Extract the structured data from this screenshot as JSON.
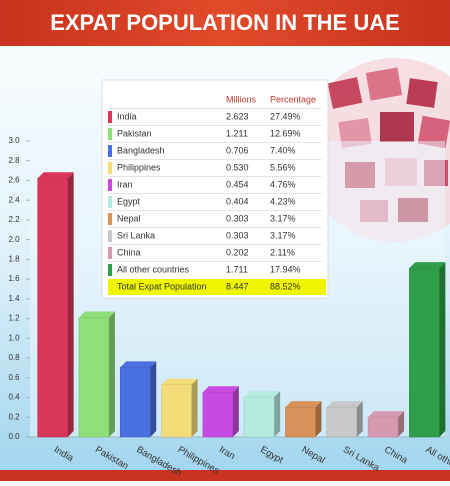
{
  "chart_data": {
    "type": "bar",
    "title": "EXPAT POPULATION IN THE UAE",
    "categories": [
      "India",
      "Pakistan",
      "Bangladesh",
      "Philippines",
      "Iran",
      "Egypt",
      "Nepal",
      "Sri Lanka",
      "China",
      "All other"
    ],
    "values": [
      2.623,
      1.211,
      0.706,
      0.53,
      0.454,
      0.404,
      0.303,
      0.303,
      0.202,
      1.711
    ],
    "colors": [
      "#d9365a",
      "#8fe07a",
      "#4a6fe0",
      "#f3dc78",
      "#c94ae0",
      "#b6ece0",
      "#d9925a",
      "#c8c8c8",
      "#d69ab0",
      "#2e9e4a"
    ],
    "ylim": [
      0,
      3
    ],
    "yticks": [
      {
        "value": 0,
        "label": "0.0"
      },
      {
        "value": 0.2,
        "label": "0.2"
      },
      {
        "value": 0.4,
        "label": "0.4"
      },
      {
        "value": 0.6,
        "label": "0.6"
      },
      {
        "value": 0.8,
        "label": "0.8"
      },
      {
        "value": 1,
        "label": "1.0"
      },
      {
        "value": 1.2,
        "label": "1.2"
      },
      {
        "value": 1.4,
        "label": "1.4"
      },
      {
        "value": 1.6,
        "label": "1.6"
      },
      {
        "value": 1.8,
        "label": "1.8"
      },
      {
        "value": 2,
        "label": "2.0"
      },
      {
        "value": 2.2,
        "label": "2.2"
      },
      {
        "value": 2.4,
        "label": "2.4"
      },
      {
        "value": 2.6,
        "label": "2.6"
      },
      {
        "value": 2.8,
        "label": "2.8"
      },
      {
        "value": 3,
        "label": "3.0"
      }
    ],
    "table": {
      "columns": [
        "Millions",
        "Percentage"
      ],
      "rows": [
        [
          "India",
          "2.623",
          "27.49%"
        ],
        [
          "Pakistan",
          "1.211",
          "12.69%"
        ],
        [
          "Bangladesh",
          "0.706",
          "7.40%"
        ],
        [
          "Philippines",
          "0.530",
          "5.56%"
        ],
        [
          "Iran",
          "0.454",
          "4.76%"
        ],
        [
          "Egypt",
          "0.404",
          "4.23%"
        ],
        [
          "Nepal",
          "0.303",
          "3.17%"
        ],
        [
          "Sri Lanka",
          "0.303",
          "3.17%"
        ],
        [
          "China",
          "0.202",
          "2.11%"
        ],
        [
          "All other countries",
          "1.711",
          "17.94%"
        ]
      ],
      "total": [
        "Total Expat Population",
        "8.447",
        "88.52%"
      ]
    }
  }
}
